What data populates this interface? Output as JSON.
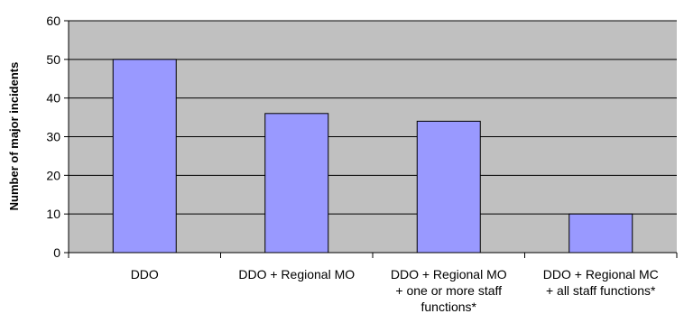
{
  "chart_data": {
    "type": "bar",
    "ylabel": "Number of major incidents",
    "xlabel": "",
    "ylim": [
      0,
      60
    ],
    "yticks": [
      0,
      10,
      20,
      30,
      40,
      50,
      60
    ],
    "categories": [
      [
        "DDO"
      ],
      [
        "DDO + Regional MO"
      ],
      [
        "DDO + Regional MO",
        "+ one or more staff",
        "functions*"
      ],
      [
        "DDO + Regional MC",
        "+ all staff functions*"
      ]
    ],
    "series": [
      {
        "values": [
          50,
          36,
          34,
          10
        ]
      }
    ],
    "grid": true,
    "legend": "none",
    "colors": {
      "plot_background": "#c0c0c0",
      "bar_fill": "#9999ff",
      "bar_stroke": "#000000",
      "gridline": "#000000"
    }
  }
}
